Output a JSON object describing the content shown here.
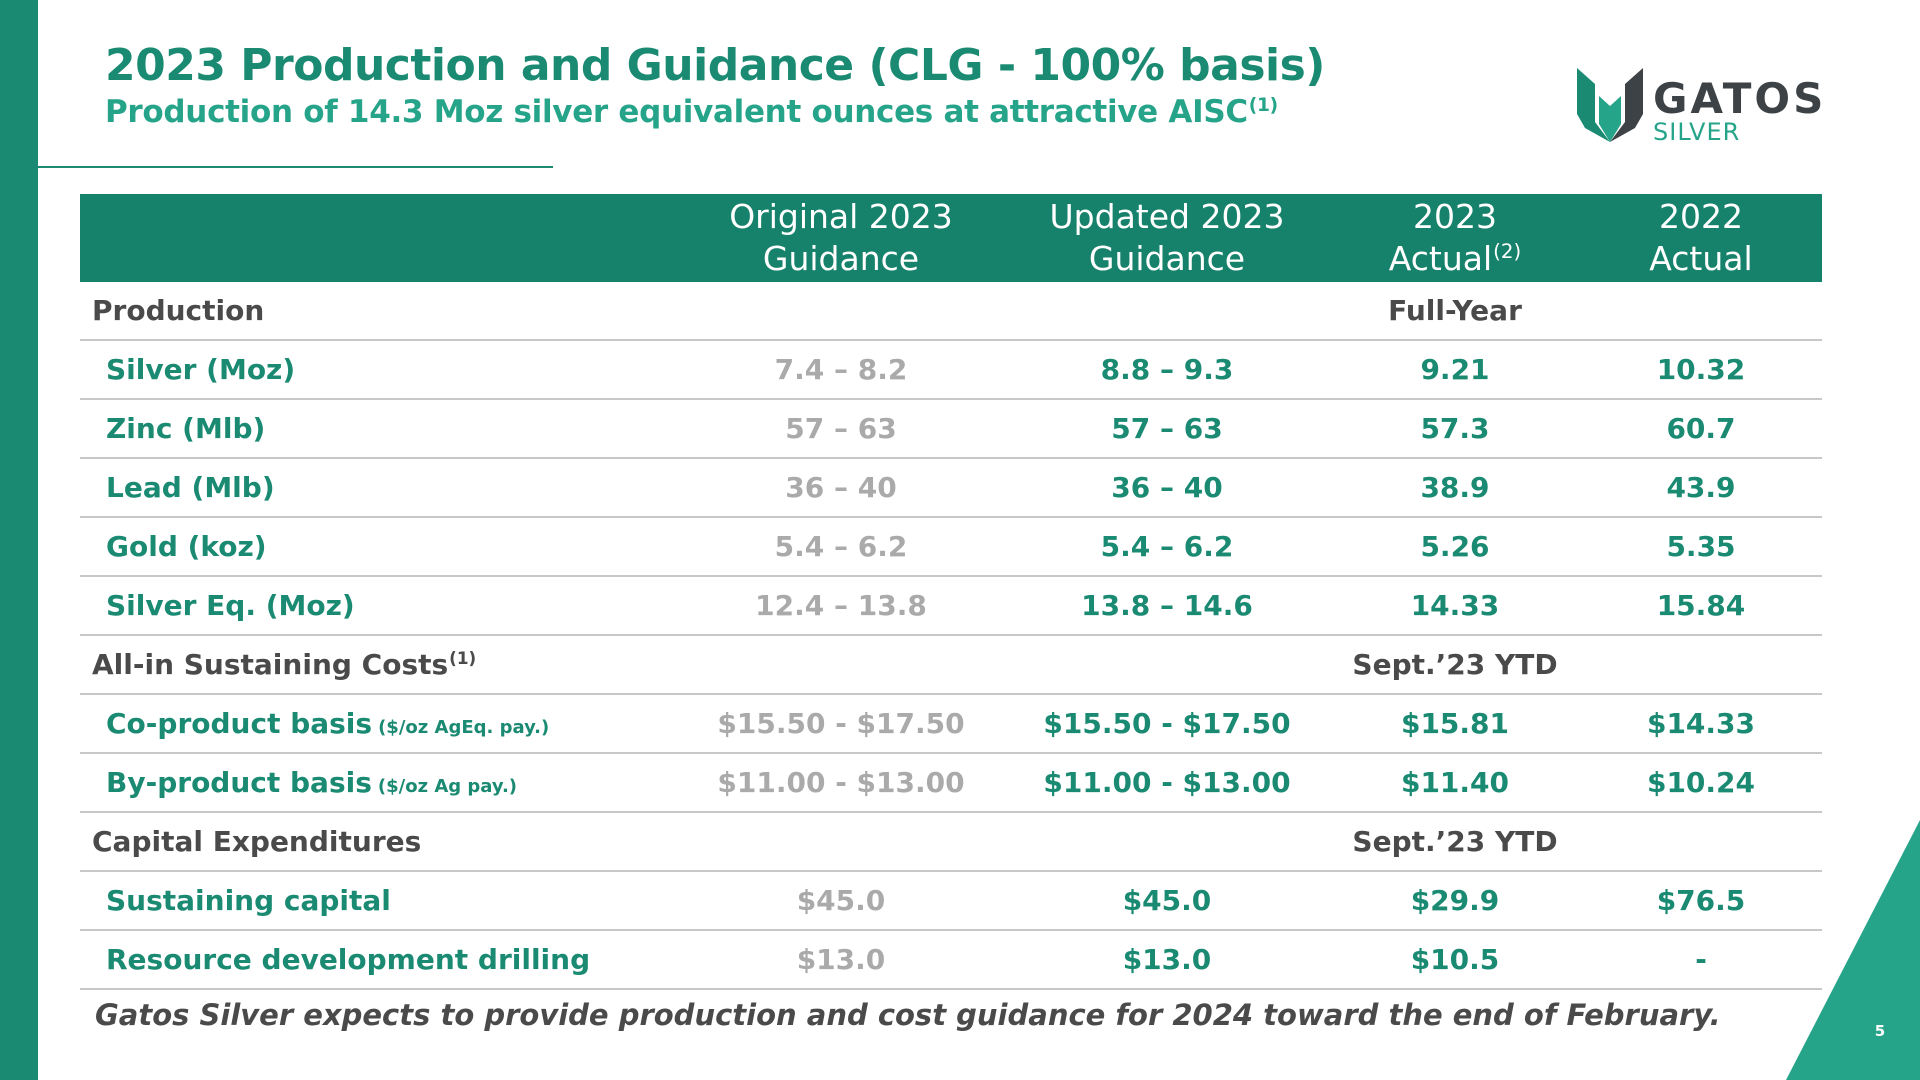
{
  "title": "2023 Production and Guidance (CLG - 100% basis)",
  "subtitle": {
    "text": "Production of 14.3 Moz silver equivalent ounces at attractive AISC",
    "sup": "(1)"
  },
  "logo": {
    "word": "GATOS",
    "sub": "SILVER"
  },
  "table": {
    "headers": [
      {
        "line1": "",
        "line2": "",
        "sup": ""
      },
      {
        "line1": "Original 2023",
        "line2": "Guidance",
        "sup": ""
      },
      {
        "line1": "Updated 2023",
        "line2": "Guidance",
        "sup": ""
      },
      {
        "line1": "2023",
        "line2": "Actual",
        "sup": "(2)"
      },
      {
        "line1": "2022",
        "line2": "Actual",
        "sup": ""
      }
    ],
    "sections": [
      {
        "label": "Production",
        "sup": "",
        "period": "Full-Year"
      },
      {
        "label": "All-in Sustaining Costs",
        "sup": "(1)",
        "period": "Sept.’23 YTD"
      },
      {
        "label": "Capital Expenditures",
        "sup": "",
        "period": "Sept.’23 YTD"
      }
    ],
    "rows": [
      {
        "label": "Silver (Moz)",
        "unit": "",
        "original": "7.4 – 8.2",
        "updated": "8.8 – 9.3",
        "actual_2023": "9.21",
        "actual_2022": "10.32"
      },
      {
        "label": "Zinc (Mlb)",
        "unit": "",
        "original": "57 – 63",
        "updated": "57 – 63",
        "actual_2023": "57.3",
        "actual_2022": "60.7"
      },
      {
        "label": "Lead (Mlb)",
        "unit": "",
        "original": "36 – 40",
        "updated": "36 – 40",
        "actual_2023": "38.9",
        "actual_2022": "43.9"
      },
      {
        "label": "Gold (koz)",
        "unit": "",
        "original": "5.4 – 6.2",
        "updated": "5.4 – 6.2",
        "actual_2023": "5.26",
        "actual_2022": "5.35"
      },
      {
        "label": "Silver Eq. (Moz)",
        "unit": "",
        "original": "12.4 – 13.8",
        "updated": "13.8 – 14.6",
        "actual_2023": "14.33",
        "actual_2022": "15.84"
      },
      {
        "label": "Co-product basis",
        "unit": "($/oz AgEq. pay.)",
        "original": "$15.50 - $17.50",
        "updated": "$15.50 - $17.50",
        "actual_2023": "$15.81",
        "actual_2022": "$14.33"
      },
      {
        "label": "By-product basis",
        "unit": "($/oz Ag pay.)",
        "original": "$11.00 - $13.00",
        "updated": "$11.00 - $13.00",
        "actual_2023": "$11.40",
        "actual_2022": "$10.24"
      },
      {
        "label": "Sustaining capital",
        "unit": "",
        "original": "$45.0",
        "updated": "$45.0",
        "actual_2023": "$29.9",
        "actual_2022": "$76.5"
      },
      {
        "label": "Resource development drilling",
        "unit": "",
        "original": "$13.0",
        "updated": "$13.0",
        "actual_2023": "$10.5",
        "actual_2022": "-"
      }
    ]
  },
  "footnote": "Gatos Silver expects to provide production and cost guidance for 2024 toward the end of February.",
  "page_number": "5",
  "colors": {
    "brand_dark": "#17826b",
    "brand": "#1a8a72",
    "brand_light": "#26a48a",
    "muted": "#aaaaaa",
    "text": "#4a4a4a"
  }
}
